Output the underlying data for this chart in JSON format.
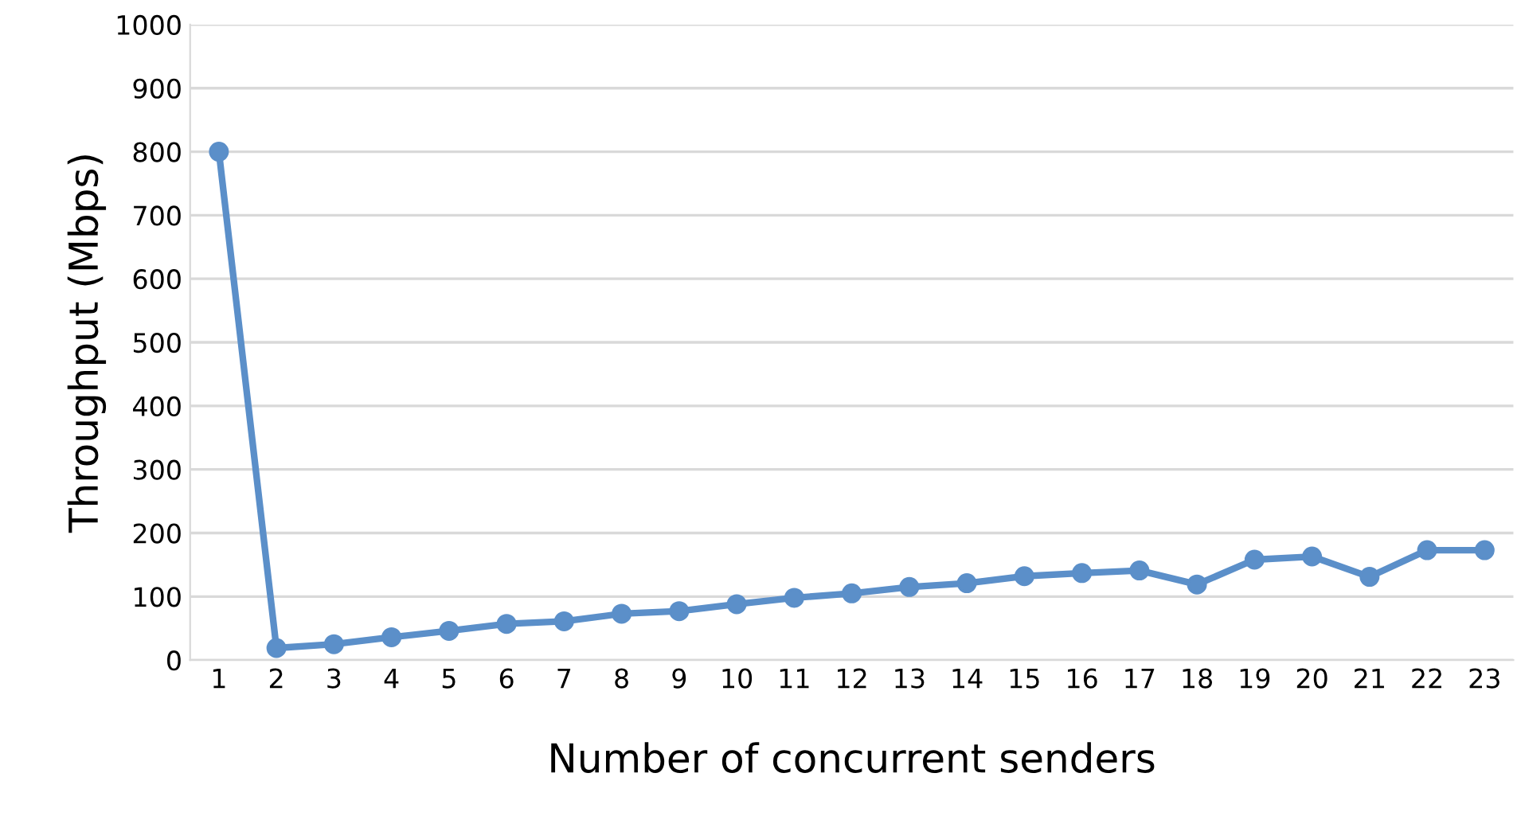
{
  "chart_data": {
    "type": "line",
    "xlabel": "Number of concurrent senders",
    "ylabel": "Throughput (Mbps)",
    "categories": [
      "1",
      "2",
      "3",
      "4",
      "5",
      "6",
      "7",
      "8",
      "9",
      "10",
      "11",
      "12",
      "13",
      "14",
      "15",
      "16",
      "17",
      "18",
      "19",
      "20",
      "21",
      "22",
      "23"
    ],
    "series": [
      {
        "color": "#5b8fc9",
        "values": [
          800,
          19,
          25,
          36,
          46,
          57,
          61,
          73,
          77,
          88,
          98,
          105,
          115,
          121,
          132,
          137,
          141,
          119,
          158,
          163,
          131,
          173,
          173
        ]
      }
    ],
    "ylim": [
      0,
      1000
    ],
    "yticks": [
      0,
      100,
      200,
      300,
      400,
      500,
      600,
      700,
      800,
      900,
      1000
    ],
    "grid": "y",
    "marker": "circle",
    "line_style": "solid"
  }
}
